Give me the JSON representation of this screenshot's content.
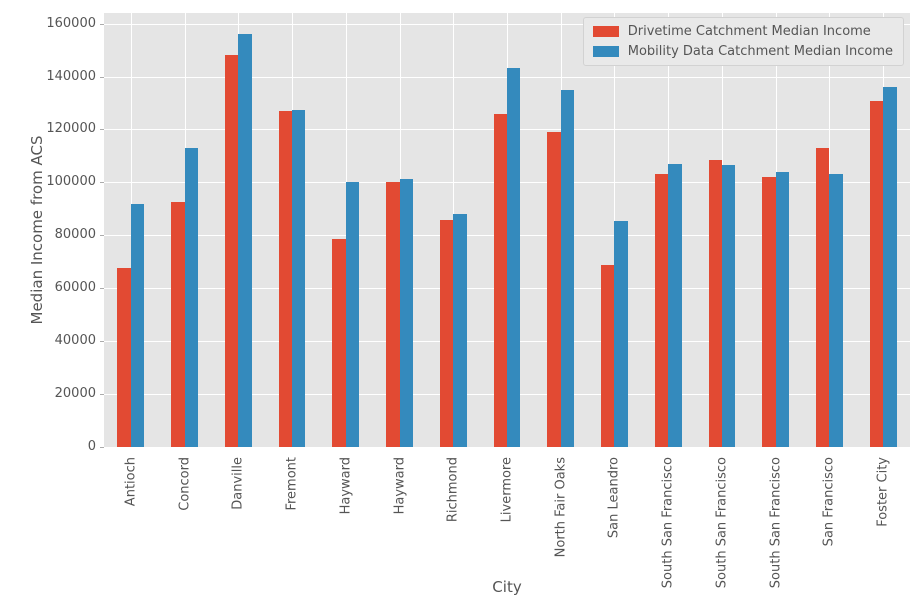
{
  "chart_data": {
    "type": "bar",
    "title": "",
    "xlabel": "City",
    "ylabel": "Median Income from ACS",
    "categories": [
      "Antioch",
      "Concord",
      "Danville",
      "Fremont",
      "Hayward",
      "Hayward",
      "Richmond",
      "Livermore",
      "North Fair Oaks",
      "San Leandro",
      "South San Francisco",
      "South San Francisco",
      "South San Francisco",
      "San Francisco",
      "Foster City"
    ],
    "series": [
      {
        "name": "Drivetime Catchment Median Income",
        "color": "#E24A33",
        "values": [
          67600,
          92500,
          148300,
          126900,
          78500,
          100000,
          85800,
          126000,
          119200,
          68800,
          103100,
          108300,
          102200,
          113100,
          130700
        ]
      },
      {
        "name": "Mobility Data Catchment Median Income",
        "color": "#348ABD",
        "values": [
          91800,
          112900,
          156200,
          127400,
          100100,
          101200,
          88100,
          143400,
          134800,
          85300,
          107100,
          106400,
          103900,
          103200,
          136200
        ]
      }
    ],
    "ylim": [
      0,
      164000
    ],
    "yticks": [
      0,
      20000,
      40000,
      60000,
      80000,
      100000,
      120000,
      140000,
      160000
    ],
    "grid": true,
    "legend_position": "upper right",
    "colors": {
      "axes_background": "#E5E5E5",
      "figure_background": "#FFFFFF",
      "gridline": "#FFFFFF",
      "text": "#555555",
      "legend_background": "#E9E9E9",
      "legend_border": "#D2D2D2"
    }
  }
}
